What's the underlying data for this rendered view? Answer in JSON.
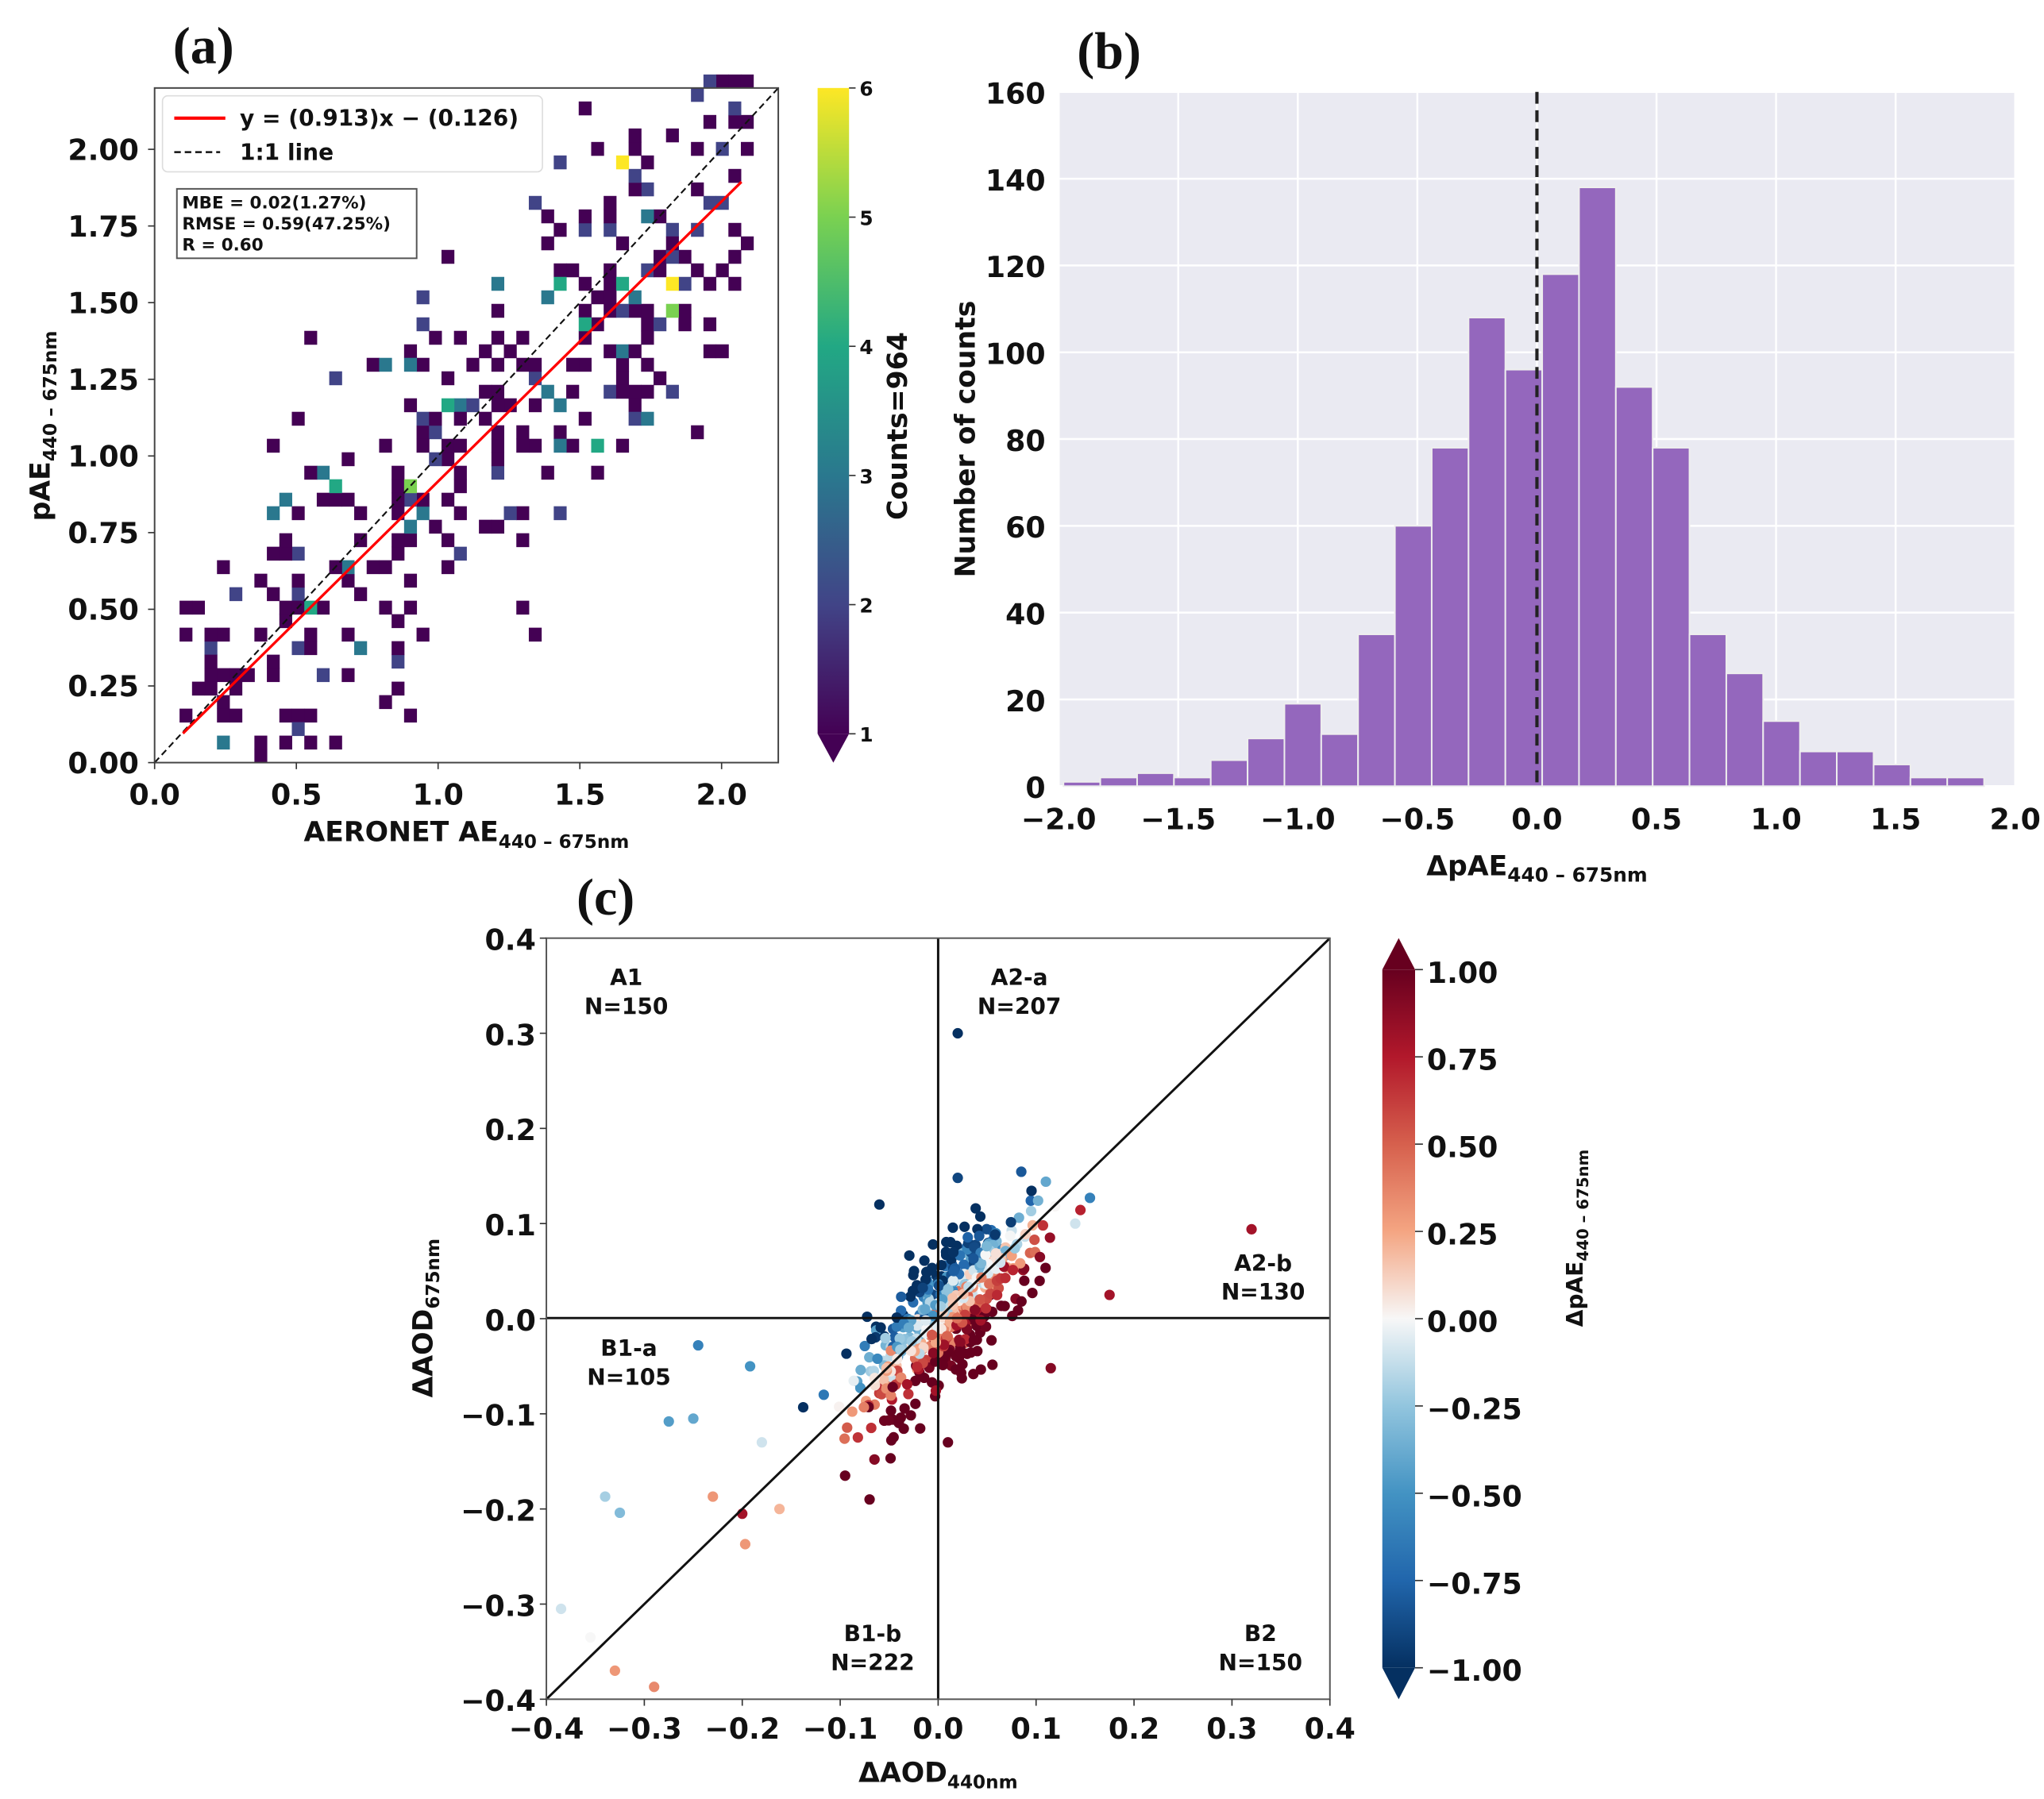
{
  "panels": {
    "a": "(a)",
    "b": "(b)",
    "c": "(c)"
  },
  "chart_data": [
    {
      "id": "a",
      "type": "heatmap",
      "xlabel": "AERONET AE",
      "xlabel_sub": "440 – 675nm",
      "ylabel": "pAE",
      "ylabel_sub": "440 – 675nm",
      "xlim": [
        0,
        2.2
      ],
      "ylim": [
        0,
        2.2
      ],
      "xticks": [
        "0.0",
        "0.5",
        "1.0",
        "1.5",
        "2.0"
      ],
      "yticks": [
        "0.00",
        "0.25",
        "0.50",
        "0.75",
        "1.00",
        "1.25",
        "1.50",
        "1.75",
        "2.00"
      ],
      "bin_size": 0.044,
      "fit": {
        "slope": 0.913,
        "intercept": -0.126,
        "x_range": [
          0.1,
          2.07
        ]
      },
      "legend": [
        "y = (0.913)x − (0.126)",
        "1:1 line"
      ],
      "stats": [
        "MBE = 0.02(1.27%)",
        "RMSE = 0.59(47.25%)",
        "R = 0.60"
      ],
      "colorbar": {
        "label": "Counts=964",
        "ticks": [
          "1",
          "2",
          "3",
          "4",
          "5",
          "6"
        ],
        "range": [
          1,
          6
        ],
        "colors": [
          "#440154",
          "#414487",
          "#2a788e",
          "#22a884",
          "#7ad151",
          "#fde725"
        ]
      },
      "high_cells": [
        [
          1.67,
          1.95,
          6
        ],
        [
          1.81,
          1.57,
          6
        ],
        [
          1.81,
          1.47,
          5
        ],
        [
          0.88,
          0.92,
          5
        ],
        [
          1.66,
          1.57,
          4
        ],
        [
          1.42,
          1.57,
          4
        ],
        [
          1.03,
          1.15,
          4
        ],
        [
          0.62,
          0.9,
          4
        ],
        [
          0.53,
          0.5,
          4
        ],
        [
          1.5,
          1.45,
          4
        ],
        [
          0.45,
          0.84,
          3
        ],
        [
          1.55,
          1.05,
          4
        ],
        [
          1.58,
          1.05,
          4
        ],
        [
          1.72,
          1.8,
          3
        ],
        [
          0.83,
          1.3,
          3
        ],
        [
          0.9,
          1.3,
          3
        ],
        [
          1.4,
          1.2,
          3
        ],
        [
          1.72,
          1.1,
          3
        ],
        [
          0.95,
          0.8,
          2
        ],
        [
          1.2,
          1.55,
          3
        ]
      ],
      "background_cells": 320,
      "seed": 17
    },
    {
      "id": "b",
      "type": "bar",
      "xlabel": "ΔpAE",
      "xlabel_sub": "440 – 675nm",
      "ylabel": "Number of counts",
      "xlim": [
        -2.0,
        2.0
      ],
      "ylim": [
        0,
        160
      ],
      "xticks": [
        "−2.0",
        "−1.5",
        "−1.0",
        "−0.5",
        "0.0",
        "0.5",
        "1.0",
        "1.5",
        "2.0"
      ],
      "yticks": [
        "0",
        "20",
        "40",
        "60",
        "80",
        "100",
        "120",
        "140",
        "160"
      ],
      "bin_start": -1.98,
      "bin_width": 0.154,
      "values": [
        1,
        2,
        3,
        2,
        6,
        11,
        19,
        12,
        35,
        60,
        78,
        108,
        96,
        118,
        138,
        92,
        78,
        35,
        26,
        15,
        8,
        8,
        5,
        2,
        2
      ],
      "vline": 0.0,
      "color": "#9467bd",
      "background": "#eaeaf2"
    },
    {
      "id": "c",
      "type": "scatter",
      "xlabel": "ΔAOD",
      "xlabel_sub": "440nm",
      "ylabel": "ΔAOD",
      "ylabel_sub": "675nm",
      "xlim": [
        -0.4,
        0.4
      ],
      "ylim": [
        -0.4,
        0.4
      ],
      "xticks": [
        "−0.4",
        "−0.3",
        "−0.2",
        "−0.1",
        "0.0",
        "0.1",
        "0.2",
        "0.3",
        "0.4"
      ],
      "yticks": [
        "−0.4",
        "−0.3",
        "−0.2",
        "−0.1",
        "0.0",
        "0.1",
        "0.2",
        "0.3",
        "0.4"
      ],
      "quadrants": [
        {
          "name": "A1",
          "n": "N=150"
        },
        {
          "name": "A2-a",
          "n": "N=207"
        },
        {
          "name": "A2-b",
          "n": "N=130"
        },
        {
          "name": "B1-a",
          "n": "N=105"
        },
        {
          "name": "B1-b",
          "n": "N=222"
        },
        {
          "name": "B2",
          "n": "N=150"
        }
      ],
      "colorbar": {
        "label": "ΔpAE",
        "label_sub": "440 – 675nm",
        "range": [
          -1,
          1
        ],
        "ticks": [
          "1.00",
          "0.75",
          "0.50",
          "0.25",
          "0.00",
          "−0.25",
          "−0.50",
          "−0.75",
          "−1.00"
        ],
        "colors": [
          "#053061",
          "#2166ac",
          "#4393c3",
          "#92c5de",
          "#f7f7f7",
          "#f4a582",
          "#d6604d",
          "#b2182b",
          "#67001f"
        ]
      },
      "outliers": [
        [
          0.02,
          0.3,
          -1
        ],
        [
          0.32,
          0.094,
          0.8
        ],
        [
          -0.245,
          -0.028,
          -0.6
        ],
        [
          -0.192,
          -0.05,
          -0.5
        ],
        [
          -0.275,
          -0.108,
          -0.45
        ],
        [
          -0.25,
          -0.105,
          -0.4
        ],
        [
          -0.34,
          -0.187,
          -0.2
        ],
        [
          -0.325,
          -0.204,
          -0.3
        ],
        [
          -0.385,
          -0.305,
          -0.1
        ],
        [
          -0.355,
          -0.335,
          0.0
        ],
        [
          -0.33,
          -0.37,
          0.3
        ],
        [
          -0.29,
          -0.387,
          0.35
        ],
        [
          -0.23,
          -0.187,
          0.3
        ],
        [
          -0.2,
          -0.205,
          0.8
        ],
        [
          -0.197,
          -0.237,
          0.3
        ],
        [
          -0.162,
          -0.2,
          0.2
        ],
        [
          -0.18,
          -0.13,
          -0.1
        ],
        [
          -0.07,
          -0.19,
          1
        ],
        [
          -0.095,
          -0.165,
          1
        ],
        [
          -0.065,
          -0.148,
          0.9
        ],
        [
          0.01,
          -0.13,
          1
        ],
        [
          0.115,
          -0.052,
          0.9
        ],
        [
          0.175,
          0.025,
          0.8
        ],
        [
          0.155,
          0.127,
          -0.6
        ],
        [
          0.11,
          0.144,
          -0.4
        ],
        [
          0.14,
          0.1,
          -0.1
        ],
        [
          0.02,
          0.148,
          -0.9
        ],
        [
          -0.06,
          0.12,
          -1
        ]
      ],
      "cluster_points": 520,
      "seed": 5
    }
  ]
}
